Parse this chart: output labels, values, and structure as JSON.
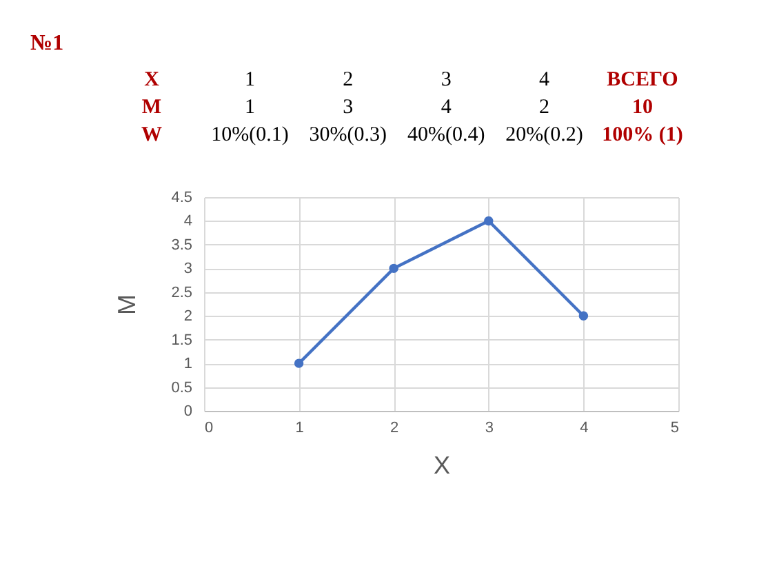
{
  "chart_data": {
    "type": "line",
    "title": "№1",
    "xlabel": "X",
    "ylabel": "M",
    "x": [
      1,
      2,
      3,
      4
    ],
    "series": [
      {
        "color": "#4472c4",
        "values": [
          1,
          3,
          4,
          2
        ]
      }
    ],
    "xlim": [
      0,
      5
    ],
    "xticks": [
      0,
      1,
      2,
      3,
      4,
      5
    ],
    "ylim": [
      0,
      4.5
    ],
    "yticks": [
      0,
      0.5,
      1,
      1.5,
      2,
      2.5,
      3,
      3.5,
      4,
      4.5
    ],
    "grid": true,
    "marker": "circle",
    "line_style": "solid",
    "annotations": [
      "X",
      "1",
      "2",
      "3",
      "4",
      "ВСЕГО",
      "M",
      "1",
      "3",
      "4",
      "2",
      "10",
      "W",
      "10%(0.1)",
      "30%(0.3)",
      "40%(0.4)",
      "20%(0.2)",
      "100% (1)"
    ]
  }
}
